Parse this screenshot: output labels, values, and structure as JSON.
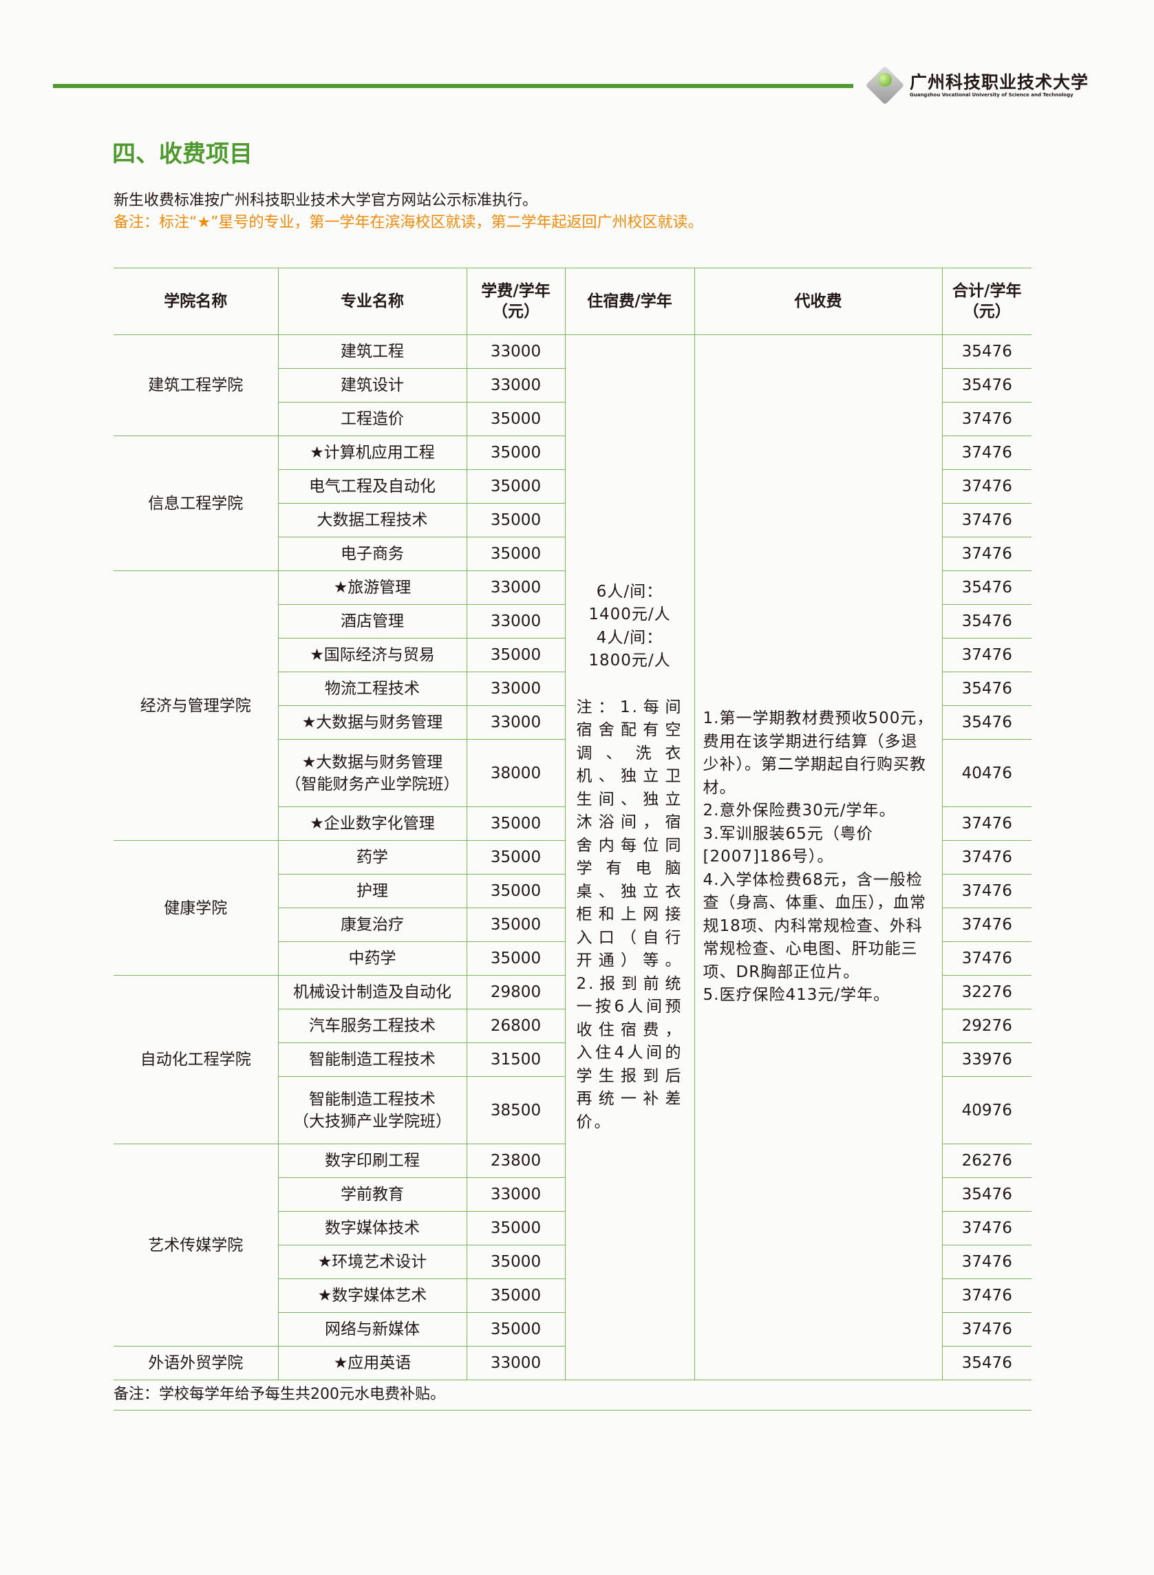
{
  "header": {
    "logo_cn": "广州科技职业技术大学",
    "logo_en": "Guangzhou Vocational University of Science and Technology",
    "accent": "#4e9a2e"
  },
  "section_title": "四、收费项目",
  "intro": "新生收费标准按广州科技职业技术大学官方网站公示标准执行。",
  "note": "备注：标注“★”星号的专业，第一学年在滨海校区就读，第二学年起返回广州校区就读。",
  "note_color": "#ee8a0a",
  "table": {
    "headers": [
      "学院名称",
      "专业名称",
      "学费/学年（元）",
      "住宿费/学年",
      "代收费",
      "合计/学年（元）"
    ],
    "dorm": {
      "fee1": "6人/间：1400元/人",
      "fee2": "4人/间：1800元/人",
      "notes": "注：1.每间宿舍配有空调、洗衣机、独立卫生间、独立沐浴间，宿舍内每位同学有电脑桌、独立衣柜和上网接入口（自行开通）等。2.报到前统一按6人间预收住宿费，入住4人间的学生报到后再统一补差价。"
    },
    "agency": [
      "1.第一学期教材费预收500元，费用在该学期进行结算（多退少补）。第二学期起自行购买教材。",
      "2.意外保险费30元/学年。",
      "3.军训服装65元（粤价[2007]186号）。",
      "4.入学体检费68元，含一般检查（身高、体重、血压），血常规18项、内科常规检查、外科常规检查、心电图、肝功能三项、DR胸部正位片。",
      "5.医疗保险413元/学年。"
    ],
    "colleges": [
      {
        "name": "建筑工程学院",
        "majors": [
          [
            "建筑工程",
            "33000",
            "35476"
          ],
          [
            "建筑设计",
            "33000",
            "35476"
          ],
          [
            "工程造价",
            "35000",
            "37476"
          ]
        ]
      },
      {
        "name": "信息工程学院",
        "majors": [
          [
            "★计算机应用工程",
            "35000",
            "37476"
          ],
          [
            "电气工程及自动化",
            "35000",
            "37476"
          ],
          [
            "大数据工程技术",
            "35000",
            "37476"
          ],
          [
            "电子商务",
            "35000",
            "37476"
          ]
        ]
      },
      {
        "name": "经济与管理学院",
        "majors": [
          [
            "★旅游管理",
            "33000",
            "35476"
          ],
          [
            "酒店管理",
            "33000",
            "35476"
          ],
          [
            "★国际经济与贸易",
            "35000",
            "37476"
          ],
          [
            "物流工程技术",
            "33000",
            "35476"
          ],
          [
            "★大数据与财务管理",
            "33000",
            "35476"
          ],
          [
            "★大数据与财务管理（智能财务产业学院班）",
            "38000",
            "40476"
          ],
          [
            "★企业数字化管理",
            "35000",
            "37476"
          ]
        ]
      },
      {
        "name": "健康学院",
        "majors": [
          [
            "药学",
            "35000",
            "37476"
          ],
          [
            "护理",
            "35000",
            "37476"
          ],
          [
            "康复治疗",
            "35000",
            "37476"
          ],
          [
            "中药学",
            "35000",
            "37476"
          ]
        ]
      },
      {
        "name": "自动化工程学院",
        "majors": [
          [
            "机械设计制造及自动化",
            "29800",
            "32276"
          ],
          [
            "汽车服务工程技术",
            "26800",
            "29276"
          ],
          [
            "智能制造工程技术",
            "31500",
            "33976"
          ],
          [
            "智能制造工程技术（大技狮产业学院班）",
            "38500",
            "40976"
          ]
        ]
      },
      {
        "name": "艺术传媒学院",
        "majors": [
          [
            "数字印刷工程",
            "23800",
            "26276"
          ],
          [
            "学前教育",
            "33000",
            "35476"
          ],
          [
            "数字媒体技术",
            "35000",
            "37476"
          ],
          [
            "★环境艺术设计",
            "35000",
            "37476"
          ],
          [
            "★数字媒体艺术",
            "35000",
            "37476"
          ],
          [
            "网络与新媒体",
            "35000",
            "37476"
          ]
        ]
      },
      {
        "name": "外语外贸学院",
        "majors": [
          [
            "★应用英语",
            "33000",
            "35476"
          ]
        ]
      }
    ]
  },
  "footnote": "备注：学校每学年给予每生共200元水电费补贴。"
}
